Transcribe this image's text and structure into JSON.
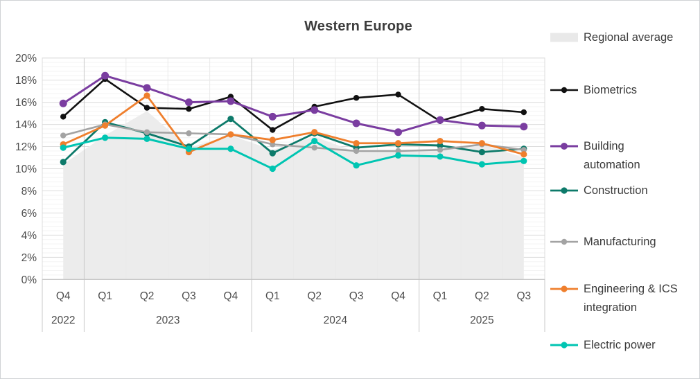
{
  "title": "Western Europe",
  "chart_data": {
    "type": "line",
    "title": "Western Europe",
    "grid": true,
    "legend_position": "right",
    "y_axis": {
      "min": 0,
      "max": 20,
      "major_step": 2,
      "minor_step": 0.4,
      "unit": "%",
      "tick_labels": [
        "0%",
        "2%",
        "4%",
        "6%",
        "8%",
        "10%",
        "12%",
        "14%",
        "16%",
        "18%",
        "20%"
      ]
    },
    "x_axis": {
      "quarter_labels": [
        "Q4",
        "Q1",
        "Q2",
        "Q3",
        "Q4",
        "Q1",
        "Q2",
        "Q3",
        "Q4",
        "Q1",
        "Q2",
        "Q3"
      ],
      "year_groups": [
        {
          "label": "2022",
          "span": 1
        },
        {
          "label": "2023",
          "span": 4
        },
        {
          "label": "2024",
          "span": 4
        },
        {
          "label": "2025",
          "span": 3
        }
      ]
    },
    "area_series": {
      "key": "regional_average",
      "name": "Regional average",
      "label_lines": [
        "Regional average"
      ],
      "fill": "#ececec",
      "legend_swatch": "#e9e9e9",
      "values": [
        10.4,
        13.0,
        15.2,
        11.9,
        13.0,
        11.7,
        12.9,
        11.5,
        11.7,
        11.7,
        12.2,
        11.0
      ]
    },
    "series": [
      {
        "key": "biometrics",
        "name": "Biometrics",
        "label_lines": [
          "Biometrics"
        ],
        "color": "#111111",
        "line_width": 2.6,
        "marker_radius": 4.2,
        "values": [
          14.7,
          18.1,
          15.5,
          15.4,
          16.5,
          13.5,
          15.6,
          16.4,
          16.7,
          14.3,
          15.4,
          15.1
        ]
      },
      {
        "key": "building_automation",
        "name": "Building automation",
        "label_lines": [
          "Building",
          "automation"
        ],
        "color": "#7a3da0",
        "line_width": 3.0,
        "marker_radius": 5.5,
        "values": [
          15.9,
          18.4,
          17.3,
          16.0,
          16.1,
          14.7,
          15.3,
          14.1,
          13.3,
          14.4,
          13.9,
          13.8
        ]
      },
      {
        "key": "construction",
        "name": "Construction",
        "label_lines": [
          "Construction"
        ],
        "color": "#0d7a6a",
        "line_width": 2.8,
        "marker_radius": 4.6,
        "values": [
          10.6,
          14.2,
          13.2,
          12.0,
          14.5,
          11.4,
          13.2,
          11.9,
          12.2,
          12.1,
          11.5,
          11.8
        ]
      },
      {
        "key": "manufacturing",
        "name": "Manufacturing",
        "label_lines": [
          "Manufacturing"
        ],
        "color": "#a3a3a3",
        "line_width": 2.6,
        "marker_radius": 4.2,
        "values": [
          13.0,
          14.0,
          13.3,
          13.2,
          13.1,
          12.2,
          11.9,
          11.6,
          11.6,
          11.7,
          12.2,
          11.7
        ]
      },
      {
        "key": "engineering_ics",
        "name": "Engineering & ICS integration",
        "label_lines": [
          "Engineering & ICS",
          "integration"
        ],
        "color": "#ef7f2d",
        "line_width": 2.8,
        "marker_radius": 4.6,
        "values": [
          12.2,
          13.9,
          16.6,
          11.5,
          13.1,
          12.6,
          13.3,
          12.3,
          12.3,
          12.5,
          12.3,
          11.3
        ]
      },
      {
        "key": "electric_power",
        "name": "Electric power",
        "label_lines": [
          "Electric power"
        ],
        "color": "#00c5b2",
        "line_width": 3.0,
        "marker_radius": 4.6,
        "values": [
          11.9,
          12.8,
          12.7,
          11.8,
          11.8,
          10.0,
          12.5,
          10.3,
          11.2,
          11.1,
          10.4,
          10.7
        ]
      }
    ],
    "colors": {
      "major_gridline": "#dcdcdc",
      "minor_gridline": "#f3f3f3",
      "vertical_gridline": "#e9e9e9",
      "year_separator": "#c9c9c9",
      "axis_line": "#bdbdbd",
      "axis_text": "#4d4d4d"
    }
  }
}
